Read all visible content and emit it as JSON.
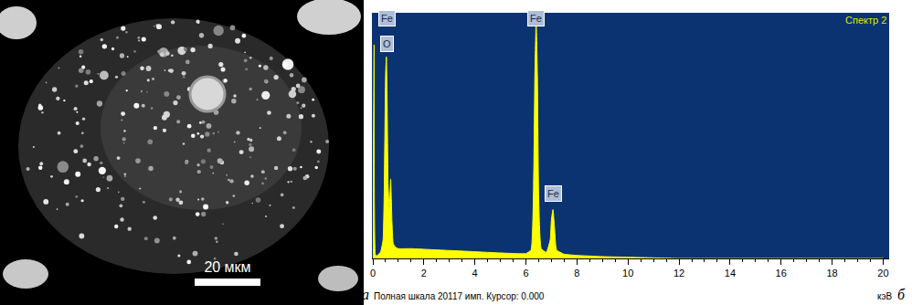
{
  "image": {
    "scale_bar": "20 мкм",
    "panel_label": "а"
  },
  "chart_data": {
    "type": "line",
    "title": "Спектр 2",
    "panel_label": "б",
    "x_label": "кэВ",
    "footer": "Полная шкала 20117 имп. Курсор: 0.000",
    "color": "#ffff00",
    "grid": false,
    "tick_labels": "x",
    "x": [
      0,
      0.05,
      0.1,
      0.15,
      0.2,
      0.3,
      0.4,
      0.45,
      0.5,
      0.53,
      0.56,
      0.6,
      0.65,
      0.7,
      0.75,
      0.8,
      0.9,
      1.0,
      1.5,
      2,
      3,
      4,
      5,
      6,
      6.2,
      6.3,
      6.35,
      6.4,
      6.45,
      6.5,
      6.6,
      6.8,
      6.95,
      7.0,
      7.06,
      7.12,
      7.2,
      7.5,
      8,
      9,
      10,
      12,
      15,
      20
    ],
    "values": [
      0,
      17500,
      300,
      200,
      300,
      500,
      1500,
      6000,
      15000,
      16500,
      13000,
      6000,
      4000,
      6500,
      3000,
      1200,
      900,
      800,
      800,
      750,
      650,
      550,
      450,
      400,
      700,
      6000,
      15000,
      19400,
      15000,
      5000,
      800,
      500,
      1500,
      3200,
      4000,
      2500,
      700,
      350,
      250,
      150,
      100,
      0,
      0,
      0
    ],
    "xlim": [
      0,
      20.2
    ],
    "xticks": [
      0,
      2,
      4,
      6,
      8,
      10,
      12,
      14,
      16,
      18,
      20
    ],
    "ylim": [
      0,
      20117
    ],
    "annotations": [
      {
        "text": "Fe",
        "x": 0.55,
        "y": 19700
      },
      {
        "text": "O",
        "x": 0.55,
        "y": 17600
      },
      {
        "text": "Fe",
        "x": 6.4,
        "y": 19700
      },
      {
        "text": "Fe",
        "x": 7.06,
        "y": 5300
      }
    ]
  }
}
